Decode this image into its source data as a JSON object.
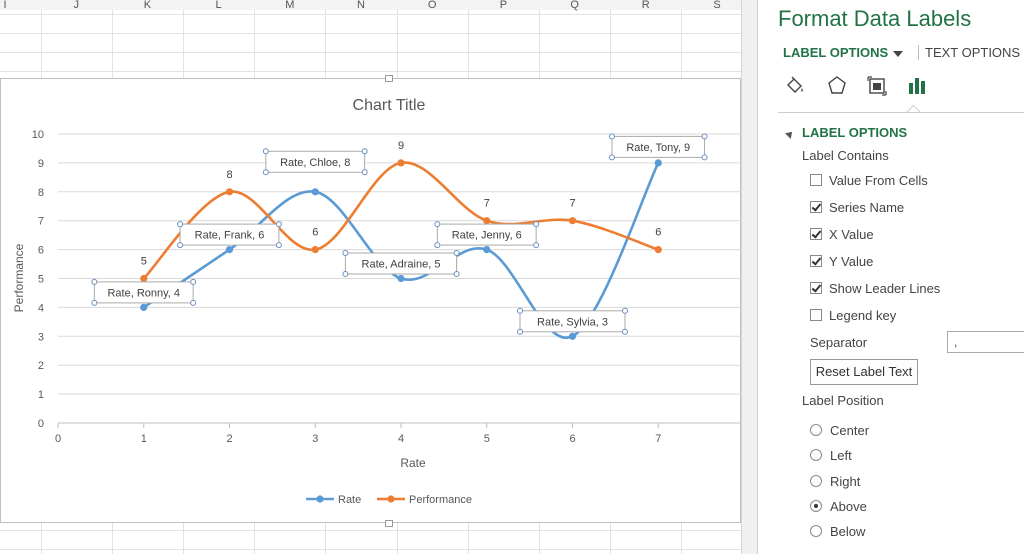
{
  "sheet": {
    "columns": [
      "I",
      "J",
      "K",
      "L",
      "M",
      "N",
      "O",
      "P",
      "Q",
      "R",
      "S"
    ]
  },
  "chart_data": {
    "type": "scatter",
    "title": "Chart Title",
    "xlabel": "Rate",
    "ylabel": "Performance",
    "xlim": [
      0,
      8
    ],
    "ylim": [
      0,
      10
    ],
    "x_ticks": [
      0,
      1,
      2,
      3,
      4,
      5,
      6,
      7
    ],
    "y_ticks": [
      0,
      1,
      2,
      3,
      4,
      5,
      6,
      7,
      8,
      9,
      10
    ],
    "smooth_lines": true,
    "grid": "horizontal",
    "legend_position": "bottom",
    "series": [
      {
        "name": "Rate",
        "color": "#5B9BD5",
        "x": [
          1,
          2,
          3,
          4,
          5,
          6,
          7
        ],
        "y": [
          4,
          6,
          8,
          5,
          6,
          3,
          9
        ],
        "labels": [
          "Rate, Ronny, 4",
          "Rate, Frank, 6",
          "Rate, Chloe, 8",
          "Rate, Adraine, 5",
          "Rate, Jenny, 6",
          "Rate, Sylvia, 3",
          "Rate, Tony, 9"
        ]
      },
      {
        "name": "Performance",
        "color": "#ED7D31",
        "x": [
          1,
          2,
          3,
          4,
          5,
          6,
          7
        ],
        "y": [
          5,
          8,
          6,
          9,
          7,
          7,
          6
        ],
        "labels": [
          "5",
          "8",
          "6",
          "9",
          "7",
          "7",
          "6"
        ]
      }
    ]
  },
  "pane": {
    "title": "Format Data Labels",
    "tab_label_options": "LABEL OPTIONS",
    "tab_text_options": "TEXT OPTIONS",
    "section_title": "LABEL OPTIONS",
    "label_contains": "Label Contains",
    "checkboxes": [
      {
        "label": "Value From Cells",
        "checked": false
      },
      {
        "label": "Series Name",
        "checked": true
      },
      {
        "label": "X Value",
        "checked": true
      },
      {
        "label": "Y Value",
        "checked": true
      },
      {
        "label": "Show Leader Lines",
        "checked": true
      },
      {
        "label": "Legend key",
        "checked": false
      }
    ],
    "separator_label": "Separator",
    "separator_value": ",",
    "reset_button": "Reset Label Text",
    "label_position": "Label Position",
    "positions": [
      {
        "label": "Center",
        "selected": false
      },
      {
        "label": "Left",
        "selected": false
      },
      {
        "label": "Right",
        "selected": false
      },
      {
        "label": "Above",
        "selected": true
      },
      {
        "label": "Below",
        "selected": false
      }
    ],
    "icons": [
      "fill-line-icon",
      "effects-icon",
      "size-properties-icon",
      "label-options-chart-icon"
    ]
  }
}
